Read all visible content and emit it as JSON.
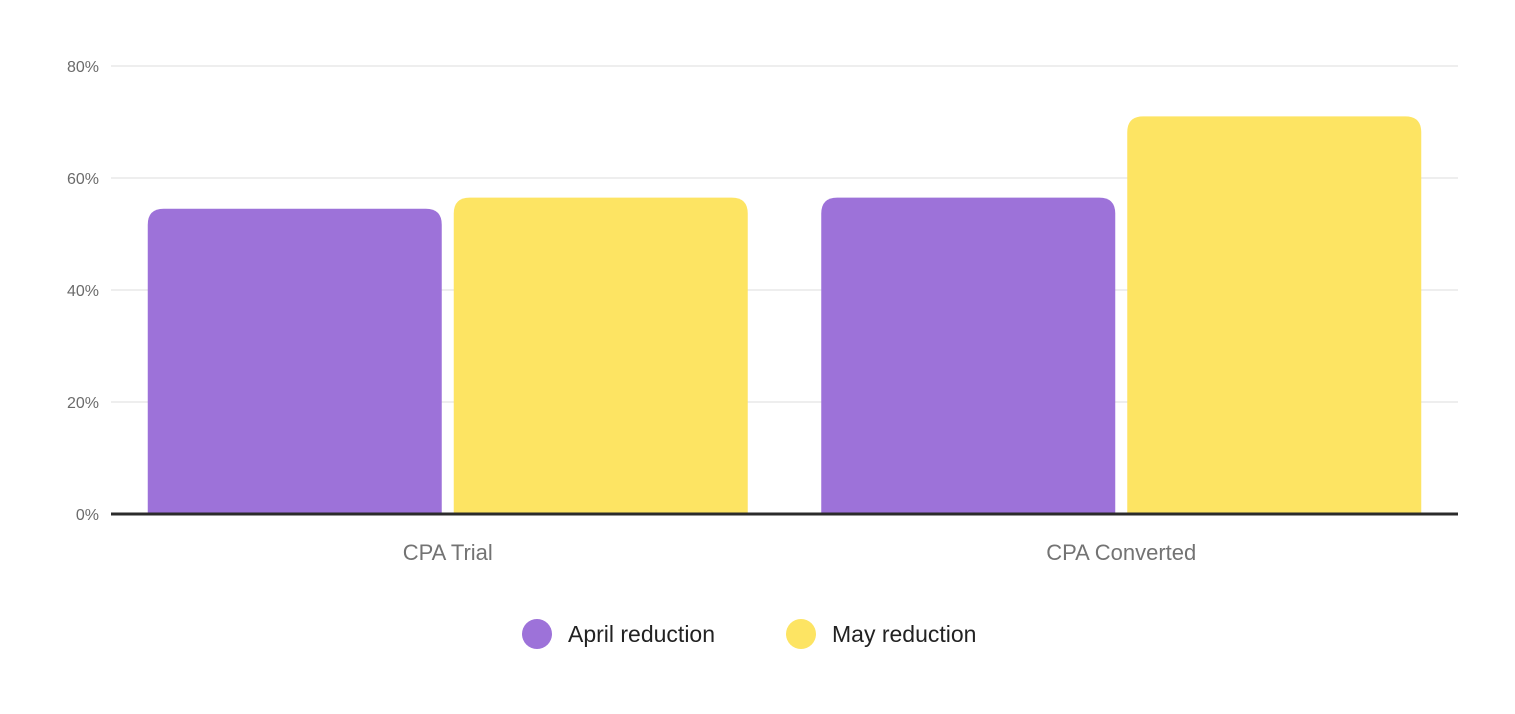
{
  "chart_data": {
    "type": "bar",
    "title": "",
    "xlabel": "",
    "ylabel": "",
    "categories": [
      "CPA Trial",
      "CPA Converted"
    ],
    "series": [
      {
        "name": "April reduction",
        "color": "#9d72d9",
        "values": [
          54.5,
          56.5
        ]
      },
      {
        "name": "May reduction",
        "color": "#fde463",
        "values": [
          56.5,
          71
        ]
      }
    ],
    "ylim": [
      0,
      80
    ],
    "yticks": [
      0,
      20,
      40,
      60,
      80
    ],
    "ytick_labels": [
      "0%",
      "20%",
      "40%",
      "60%",
      "80%"
    ],
    "grid": true,
    "legend_position": "bottom-center"
  }
}
